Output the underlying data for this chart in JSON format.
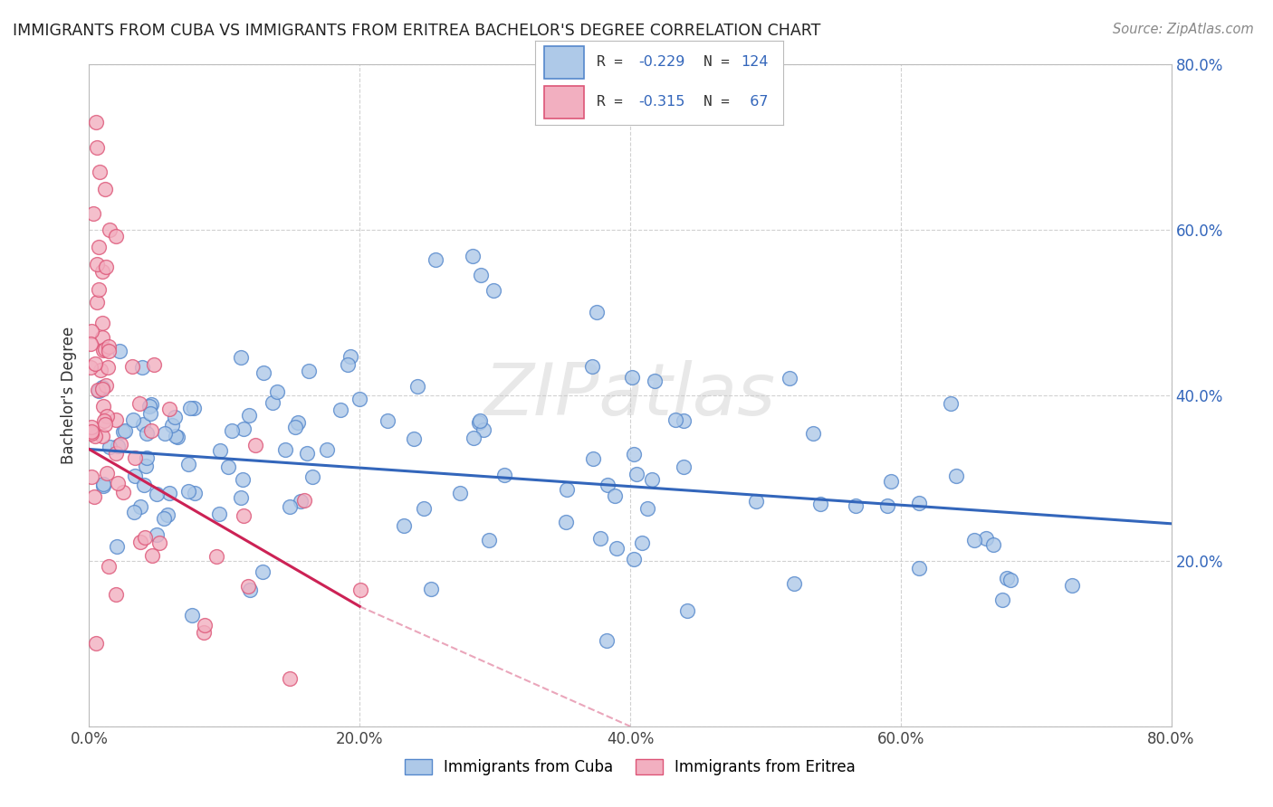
{
  "title": "IMMIGRANTS FROM CUBA VS IMMIGRANTS FROM ERITREA BACHELOR'S DEGREE CORRELATION CHART",
  "source": "Source: ZipAtlas.com",
  "ylabel": "Bachelor's Degree",
  "xlim": [
    0.0,
    0.8
  ],
  "ylim": [
    0.0,
    0.8
  ],
  "x_ticks": [
    0.0,
    0.2,
    0.4,
    0.6,
    0.8
  ],
  "y_ticks": [
    0.0,
    0.2,
    0.4,
    0.6,
    0.8
  ],
  "right_y_tick_labels": [
    "20.0%",
    "40.0%",
    "60.0%",
    "80.0%"
  ],
  "cuba_color": "#aec9e8",
  "eritrea_color": "#f2afc0",
  "cuba_edge_color": "#5588cc",
  "eritrea_edge_color": "#dd5577",
  "cuba_line_color": "#3366bb",
  "eritrea_line_color": "#cc2255",
  "legend_value_color": "#3366bb",
  "background_color": "#ffffff",
  "grid_color": "#cccccc",
  "cuba_R": -0.229,
  "cuba_N": 124,
  "eritrea_R": -0.315,
  "eritrea_N": 67,
  "watermark": "ZIPatlas"
}
